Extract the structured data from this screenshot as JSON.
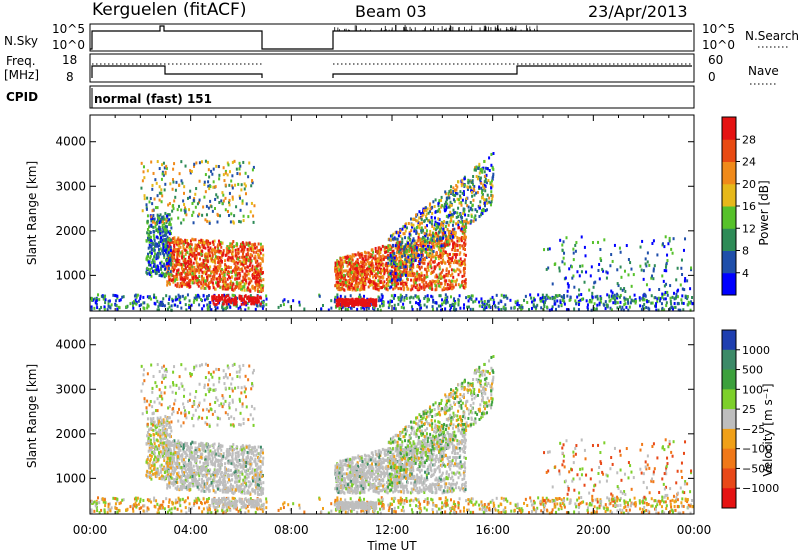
{
  "header": {
    "station": "Kerguelen (fitACF)",
    "beam": "Beam 03",
    "date": "23/Apr/2013"
  },
  "panels": {
    "nsky": {
      "label": "N.Sky",
      "ticks_left": [
        "10^5",
        "10^0"
      ],
      "ticks_right": [
        "10^5",
        "10^0"
      ],
      "right_label": "N.Search"
    },
    "freq": {
      "label_line1": "Freq.",
      "label_line2": "[MHz]",
      "ticks_left": [
        "18",
        "8"
      ],
      "ticks_right": [
        "60",
        "0"
      ],
      "right_label": "Nave"
    },
    "cpid": {
      "label": "CPID",
      "value": "normal (fast) 151"
    }
  },
  "chart_data": [
    {
      "type": "heatmap",
      "name": "power",
      "ylabel": "Slant Range [km]",
      "ylim": [
        200,
        4600
      ],
      "yticks": [
        1000,
        2000,
        3000,
        4000
      ],
      "xlim": [
        0,
        24
      ],
      "xticks": [
        "00:00",
        "04:00",
        "08:00",
        "12:00",
        "16:00",
        "20:00",
        "00:00"
      ],
      "colorbar": {
        "label": "Power [dB]",
        "ticks": [
          "4",
          "8",
          "12",
          "16",
          "20",
          "24",
          "28"
        ],
        "colors": [
          "#0000ff",
          "#1f4faa",
          "#2e8b57",
          "#56c12a",
          "#e6b81a",
          "#f08a1a",
          "#e84a12",
          "#e51212"
        ]
      }
    },
    {
      "type": "heatmap",
      "name": "velocity",
      "ylabel": "Slant Range [km]",
      "ylim": [
        200,
        4600
      ],
      "yticks": [
        1000,
        2000,
        3000,
        4000
      ],
      "xlim": [
        0,
        24
      ],
      "xticks": [
        "00:00",
        "04:00",
        "08:00",
        "12:00",
        "16:00",
        "20:00",
        "00:00"
      ],
      "xlabel": "Time UT",
      "colorbar": {
        "label": "Velocity [m s⁻¹]",
        "ticks": [
          "1000",
          "500",
          "100",
          "25",
          "−25",
          "−100",
          "−500",
          "−1000"
        ],
        "colors": [
          "#1f3fb0",
          "#3c8a68",
          "#3ca03c",
          "#7dcf2a",
          "#bebebe",
          "#f0a018",
          "#f07818",
          "#e84818",
          "#e51212"
        ]
      }
    }
  ]
}
